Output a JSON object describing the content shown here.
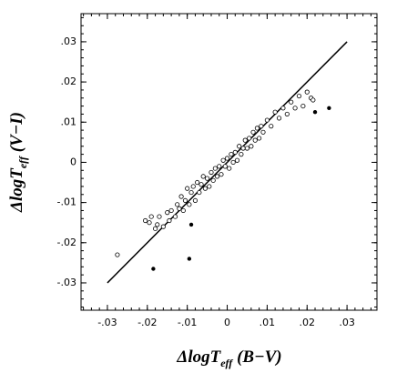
{
  "chart_data": {
    "type": "scatter",
    "xlabel": {
      "main": "ΔlogT",
      "sub": "eff",
      "tail": " (B−V)"
    },
    "ylabel": {
      "main": "ΔlogT",
      "sub": "eff",
      "tail": " (V−I)"
    },
    "xlim": [
      -0.0366,
      0.0375
    ],
    "ylim": [
      -0.0368,
      0.037
    ],
    "xticks": [
      {
        "value": -0.03,
        "label": "-.03"
      },
      {
        "value": -0.02,
        "label": "-.02"
      },
      {
        "value": -0.01,
        "label": "-.01"
      },
      0,
      {
        "value": 0.01,
        "label": ".01"
      },
      {
        "value": 0.02,
        "label": ".02"
      },
      {
        "value": 0.03,
        "label": ".03"
      }
    ],
    "yticks": [
      {
        "value": -0.03,
        "label": "-.03"
      },
      {
        "value": -0.02,
        "label": "-.02"
      },
      {
        "value": -0.01,
        "label": "-.01"
      },
      0,
      {
        "value": 0.01,
        "label": ".01"
      },
      {
        "value": 0.02,
        "label": ".02"
      },
      {
        "value": 0.03,
        "label": ".03"
      }
    ],
    "line": {
      "x": [
        -0.03,
        0.03
      ],
      "y": [
        -0.03,
        0.03
      ],
      "color": "#000000"
    },
    "series": [
      {
        "marker": "open",
        "color": "#000000",
        "x": [
          -0.0275,
          -0.0205,
          -0.0195,
          -0.019,
          -0.018,
          -0.0175,
          -0.017,
          -0.016,
          -0.015,
          -0.0145,
          -0.014,
          -0.013,
          -0.0125,
          -0.012,
          -0.0115,
          -0.011,
          -0.0105,
          -0.01,
          -0.0095,
          -0.009,
          -0.0085,
          -0.008,
          -0.0075,
          -0.007,
          -0.0065,
          -0.006,
          -0.0055,
          -0.005,
          -0.0045,
          -0.004,
          -0.0035,
          -0.003,
          -0.0025,
          -0.002,
          -0.0015,
          -0.001,
          -0.0005,
          0,
          0.0005,
          0.001,
          0.0015,
          0.002,
          0.0025,
          0.003,
          0.0035,
          0.004,
          0.0045,
          0.005,
          0.0055,
          0.006,
          0.0065,
          0.007,
          0.0075,
          0.008,
          0.0085,
          0.009,
          0.01,
          0.011,
          0.012,
          0.013,
          0.014,
          0.015,
          0.016,
          0.017,
          0.018,
          0.019,
          0.02,
          0.021,
          0.0215
        ],
        "values": [
          -0.023,
          -0.0145,
          -0.015,
          -0.0135,
          -0.0165,
          -0.0155,
          -0.0135,
          -0.016,
          -0.0125,
          -0.0145,
          -0.012,
          -0.0135,
          -0.0105,
          -0.0115,
          -0.0085,
          -0.012,
          -0.0095,
          -0.0065,
          -0.0105,
          -0.0075,
          -0.006,
          -0.0095,
          -0.005,
          -0.0075,
          -0.0055,
          -0.0035,
          -0.0065,
          -0.004,
          -0.006,
          -0.0025,
          -0.0045,
          -0.0015,
          -0.0035,
          -0.001,
          -0.003,
          0.0005,
          -0.001,
          0.001,
          -0.0015,
          0.002,
          0,
          0.0025,
          0.0005,
          0.004,
          0.002,
          0.0035,
          0.0055,
          0.0035,
          0.006,
          0.004,
          0.0075,
          0.0055,
          0.0085,
          0.006,
          0.009,
          0.0075,
          0.0105,
          0.009,
          0.0125,
          0.011,
          0.0135,
          0.012,
          0.015,
          0.0135,
          0.0165,
          0.014,
          0.0175,
          0.016,
          0.0155
        ]
      },
      {
        "marker": "filled",
        "color": "#000000",
        "x": [
          -0.0185,
          -0.0095,
          -0.009,
          0.022,
          0.0255
        ],
        "values": [
          -0.0265,
          -0.024,
          -0.0155,
          0.0125,
          0.0135
        ]
      }
    ]
  }
}
